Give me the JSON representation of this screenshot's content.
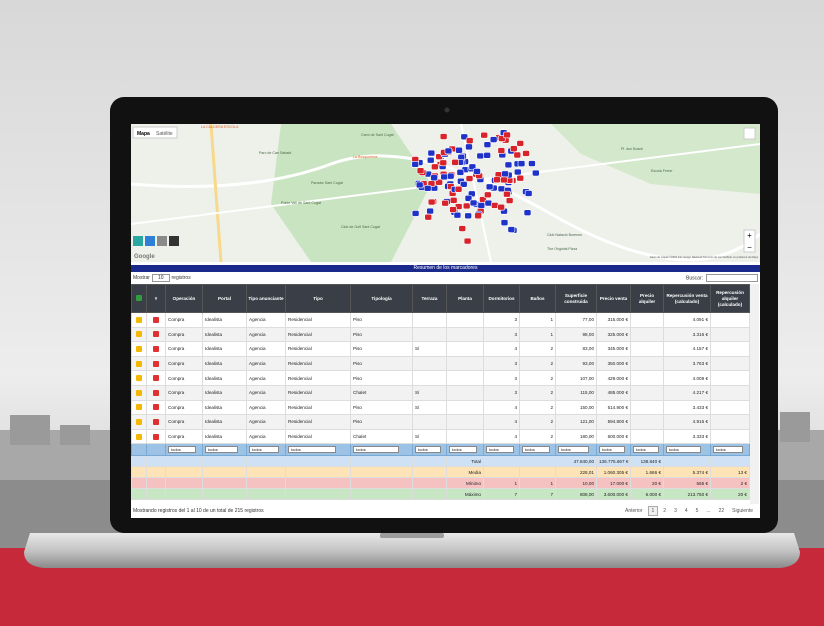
{
  "map": {
    "tabs": [
      "Mapa",
      "Satélite"
    ],
    "labels": [
      "LA CALDERA ESCOLA",
      "Parc de Can Sabaté",
      "Camí de Sant Cugat",
      "La Bosquerena",
      "Parador Sant Cugat",
      "Club de Golf Sant Cugat",
      "Club Natació Boreneu",
      "The Originial Pizza",
      "Poble Vell de Sant Cugat",
      "Pl. dun Bosch",
      "Escola Ferrer"
    ],
    "logo": "Google",
    "footer": "Datos de mapas ©2020 Inst. Geogr. Nacional  Términos de uso  Notificar un problema de Maps"
  },
  "summary_bar": "Resumen de los marcadores",
  "length_menu": {
    "prefix": "Mostrar",
    "value": "10",
    "suffix": "registros"
  },
  "search_label": "Buscar:",
  "table": {
    "headers": [
      "#",
      "Operación",
      "Portal",
      "Tipo anunciante",
      "Tipo",
      "Tipología",
      "Terraza",
      "Planta",
      "Dormitorios",
      "Baños",
      "Superficie construida",
      "Precio venta",
      "Precio alquiler",
      "Repercusión venta (calculado)",
      "Repercusión alquiler (calculado)"
    ],
    "rows": [
      [
        "Compra",
        "Idealista",
        "Agencia",
        "Residencial",
        "Piso",
        null,
        null,
        "3",
        "1",
        "77,00",
        "315.000 €",
        null,
        "4.091 €",
        null
      ],
      [
        "Compra",
        "Idealista",
        "Agencia",
        "Residencial",
        "Piso",
        null,
        null,
        "3",
        "1",
        "98,00",
        "325.000 €",
        null,
        "3.316 €",
        null
      ],
      [
        "Compra",
        "Idealista",
        "Agencia",
        "Residencial",
        "Piso",
        "Sí",
        null,
        "4",
        "2",
        "83,00",
        "345.000 €",
        null,
        "4.157 €",
        null
      ],
      [
        "Compra",
        "Idealista",
        "Agencia",
        "Residencial",
        "Piso",
        null,
        null,
        "3",
        "2",
        "93,00",
        "350.000 €",
        null,
        "3.763 €",
        null
      ],
      [
        "Compra",
        "Idealista",
        "Agencia",
        "Residencial",
        "Piso",
        null,
        null,
        "3",
        "2",
        "107,00",
        "429.000 €",
        null,
        "4.009 €",
        null
      ],
      [
        "Compra",
        "Idealista",
        "Agencia",
        "Residencial",
        "Chalet",
        "Sí",
        null,
        "3",
        "2",
        "115,00",
        "485.000 €",
        null,
        "4.217 €",
        null
      ],
      [
        "Compra",
        "Idealista",
        "Agencia",
        "Residencial",
        "Piso",
        "Sí",
        null,
        "4",
        "2",
        "150,00",
        "514.900 €",
        null,
        "3.433 €",
        null
      ],
      [
        "Compra",
        "Idealista",
        "Agencia",
        "Residencial",
        "Piso",
        null,
        null,
        "4",
        "2",
        "121,00",
        "594.800 €",
        null,
        "4.916 €",
        null
      ],
      [
        "Compra",
        "Idealista",
        "Agencia",
        "Residencial",
        "Chalet",
        "Sí",
        null,
        "4",
        "2",
        "180,00",
        "600.000 €",
        null,
        "3.333 €",
        null
      ]
    ],
    "filter_option": "todos",
    "summary": [
      {
        "label": "Total",
        "cells": [
          null,
          null,
          "47.840,00",
          "136.775.667 €",
          "138.840 €",
          null,
          null
        ]
      },
      {
        "label": "Media",
        "cells": [
          null,
          null,
          "228,01",
          "1.060.305 €",
          "1.666 €",
          "5.374 €",
          "13 €"
        ]
      },
      {
        "label": "Mínimo",
        "cells": [
          "1",
          "1",
          "10,00",
          "17.000 €",
          "20 €",
          "565 €",
          "2 €"
        ]
      },
      {
        "label": "Máximo",
        "cells": [
          "7",
          "7",
          "808,00",
          "3.600.000 €",
          "6.000 €",
          "213.750 €",
          "20 €"
        ]
      }
    ]
  },
  "info": "Mostrando registros del 1 al 10 de un total de 215 registros",
  "pagination": [
    "Anterior",
    "1",
    "2",
    "3",
    "4",
    "5",
    "...",
    "22",
    "Siguiente"
  ]
}
